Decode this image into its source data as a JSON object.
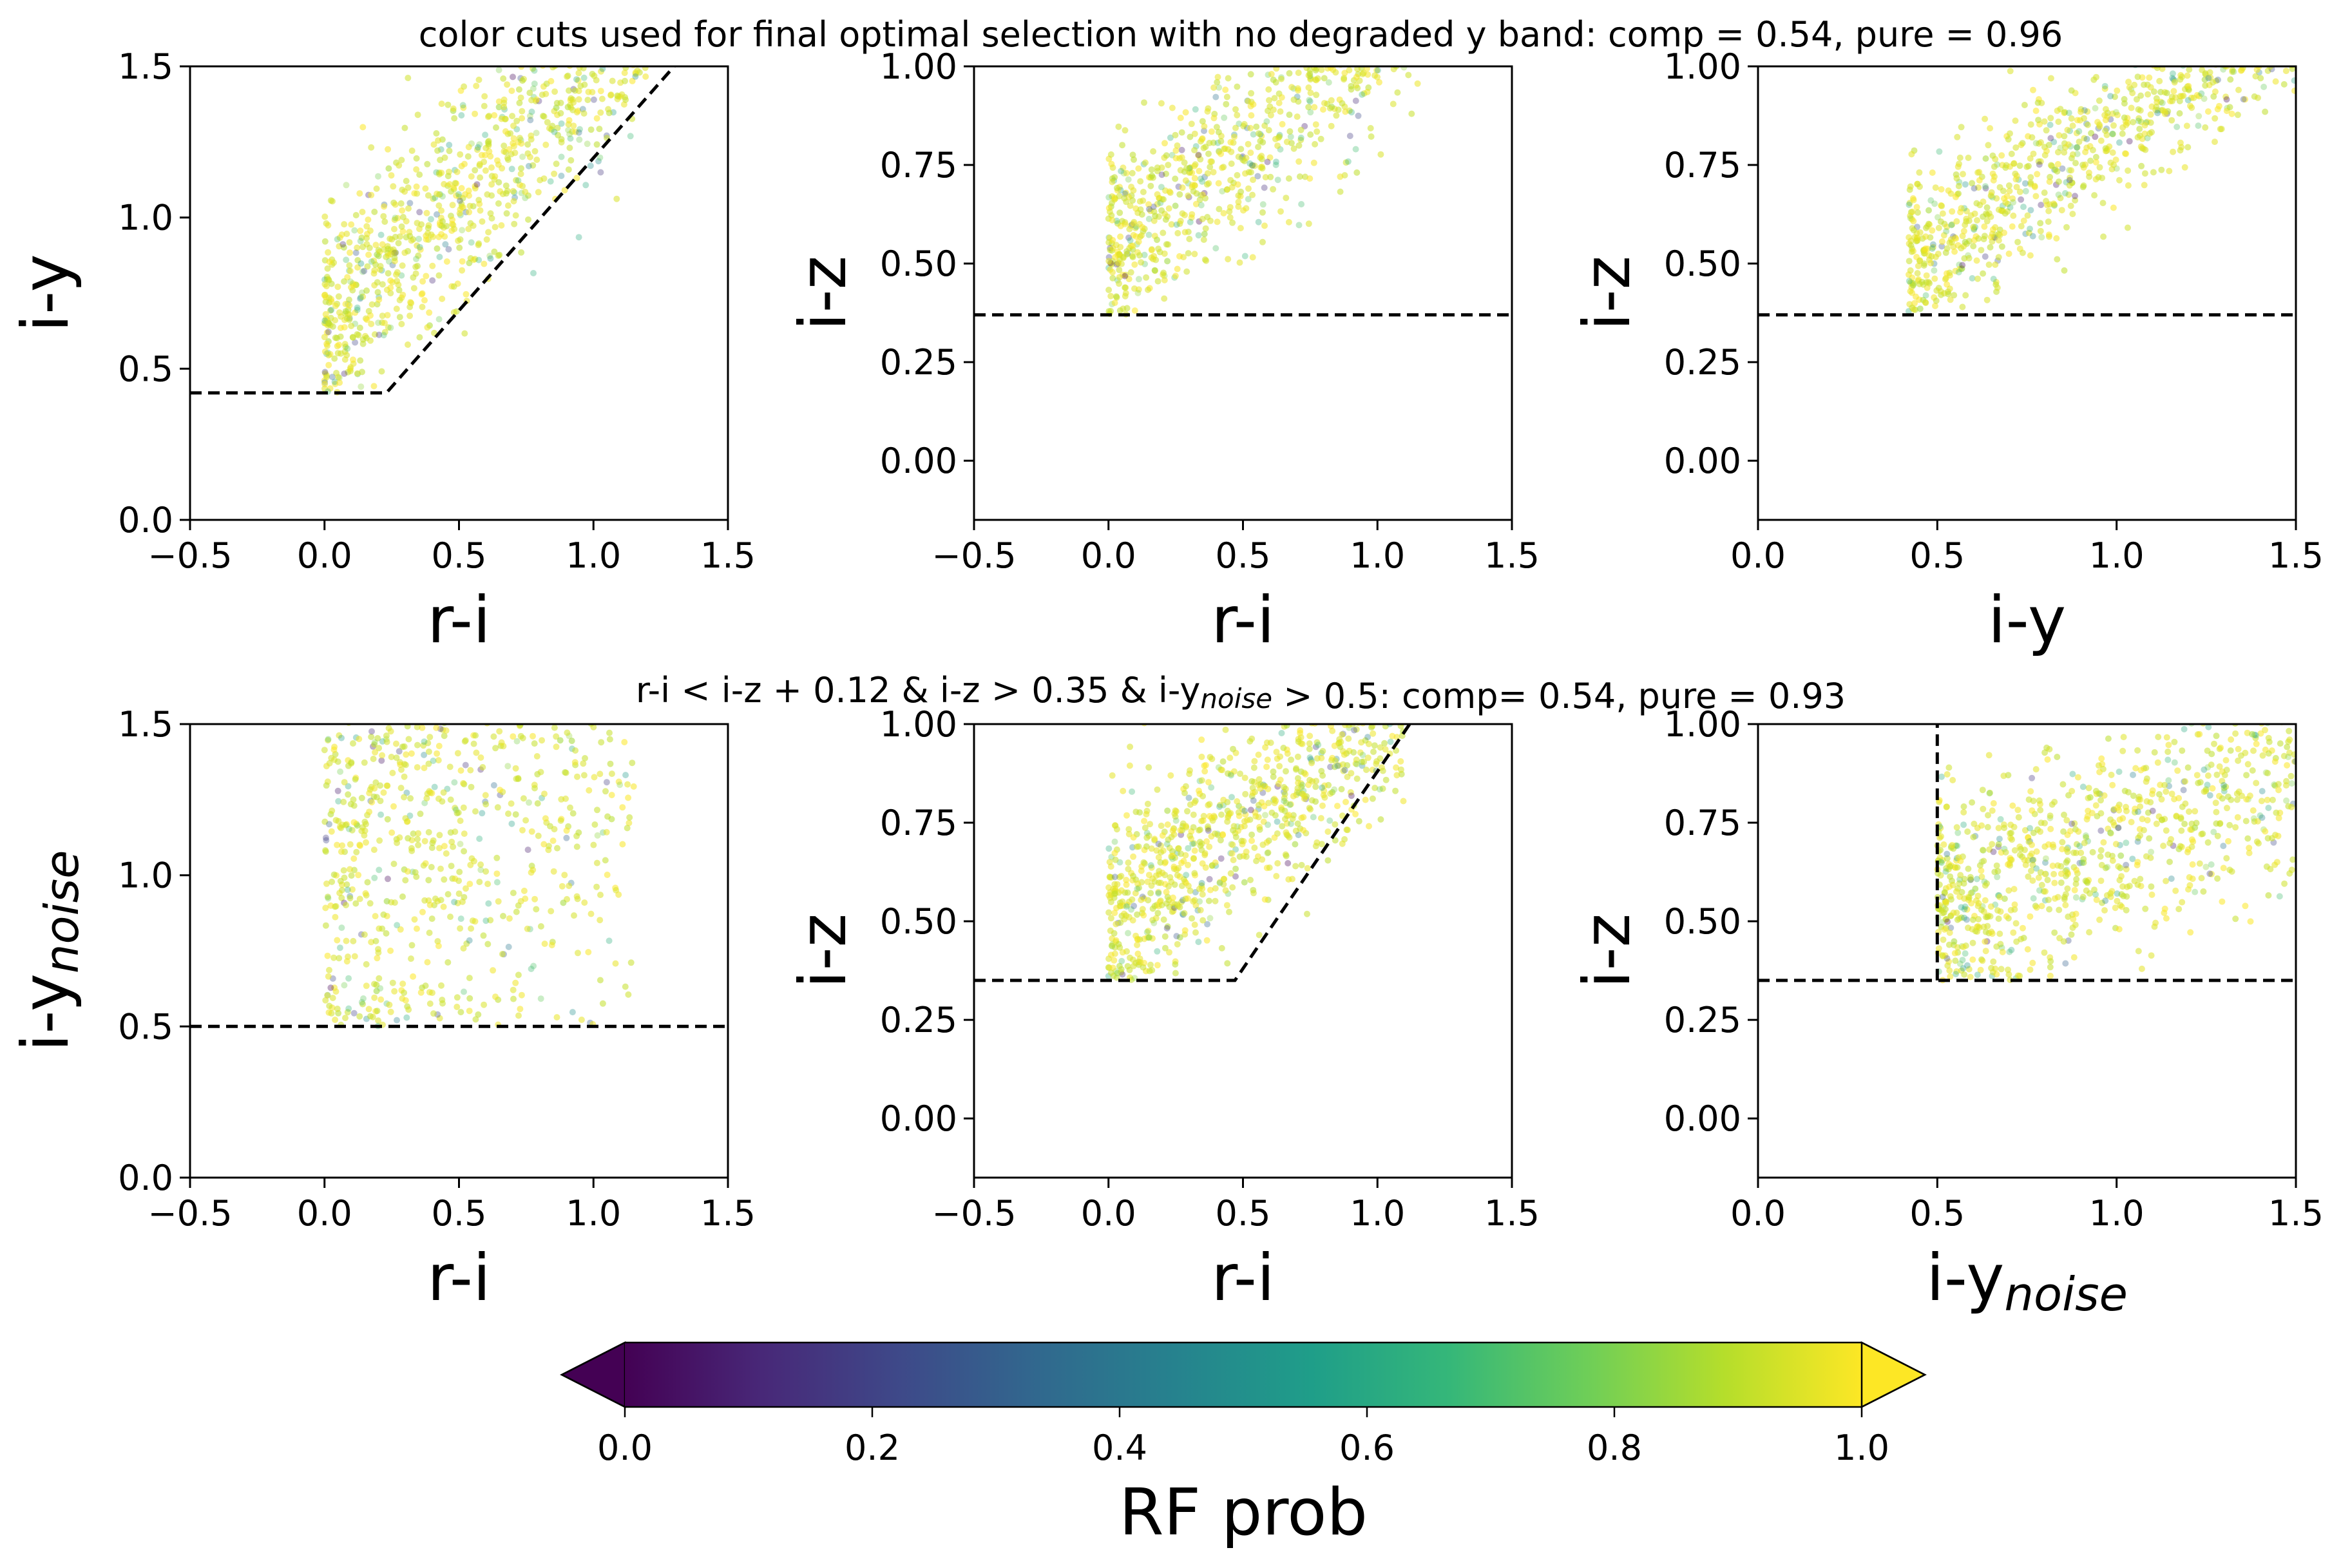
{
  "chart_data": [
    {
      "type": "scatter",
      "row_title": "color cuts used for final optimal selection with no degraded y band: comp = 0.54, pure = 0.96",
      "xlabel": "r-i",
      "ylabel": "i-y",
      "xlim": [
        -0.5,
        1.5
      ],
      "ylim": [
        0.0,
        1.5
      ],
      "xticks": [
        "−0.5",
        "0.0",
        "0.5",
        "1.0",
        "1.5"
      ],
      "xtick_values": [
        -0.5,
        0.0,
        0.5,
        1.0,
        1.5
      ],
      "yticks": [
        "0.0",
        "0.5",
        "1.0",
        "1.5"
      ],
      "ytick_values": [
        0.0,
        0.5,
        1.0,
        1.5
      ],
      "cut_line": [
        [
          -0.5,
          0.42
        ],
        [
          0.23,
          0.42
        ],
        [
          1.3,
          1.5
        ]
      ],
      "cloud": {
        "x_range": [
          0.0,
          1.2
        ],
        "y_base": 0.42,
        "slope": 0.85,
        "spread": 0.17
      }
    },
    {
      "type": "scatter",
      "xlabel": "r-i",
      "ylabel": "i-z",
      "xlim": [
        -0.5,
        1.5
      ],
      "ylim": [
        -0.15,
        1.0
      ],
      "xticks": [
        "−0.5",
        "0.0",
        "0.5",
        "1.0",
        "1.5"
      ],
      "xtick_values": [
        -0.5,
        0.0,
        0.5,
        1.0,
        1.5
      ],
      "yticks": [
        "0.00",
        "0.25",
        "0.50",
        "0.75",
        "1.00"
      ],
      "ytick_values": [
        0.0,
        0.25,
        0.5,
        0.75,
        1.0
      ],
      "cut_line": [
        [
          -0.5,
          0.37
        ],
        [
          1.5,
          0.37
        ]
      ],
      "cloud": {
        "x_range": [
          0.0,
          1.3
        ],
        "y_base": 0.37,
        "slope": 0.55,
        "spread": 0.12
      }
    },
    {
      "type": "scatter",
      "xlabel": "i-y",
      "ylabel": "i-z",
      "xlim": [
        0.0,
        1.5
      ],
      "ylim": [
        -0.15,
        1.0
      ],
      "xticks": [
        "0.0",
        "0.5",
        "1.0",
        "1.5"
      ],
      "xtick_values": [
        0.0,
        0.5,
        1.0,
        1.5
      ],
      "yticks": [
        "0.00",
        "0.25",
        "0.50",
        "0.75",
        "1.00"
      ],
      "ytick_values": [
        0.0,
        0.25,
        0.5,
        0.75,
        1.0
      ],
      "cut_line": [
        [
          0.0,
          0.37
        ],
        [
          1.5,
          0.37
        ]
      ],
      "cloud": {
        "x_range": [
          0.42,
          1.5
        ],
        "y_base": 0.37,
        "slope": 0.6,
        "spread": 0.1
      }
    },
    {
      "type": "scatter",
      "row_title": "r-i < i-z + 0.12 & i-z > 0.35 & i-y_noise > 0.5: comp= 0.54, pure = 0.93",
      "xlabel": "r-i",
      "ylabel": "i-y_noise",
      "xlim": [
        -0.5,
        1.5
      ],
      "ylim": [
        0.0,
        1.5
      ],
      "xticks": [
        "−0.5",
        "0.0",
        "0.5",
        "1.0",
        "1.5"
      ],
      "xtick_values": [
        -0.5,
        0.0,
        0.5,
        1.0,
        1.5
      ],
      "yticks": [
        "0.0",
        "0.5",
        "1.0",
        "1.5"
      ],
      "ytick_values": [
        0.0,
        0.5,
        1.0,
        1.5
      ],
      "cut_line": [
        [
          -0.5,
          0.5
        ],
        [
          1.5,
          0.5
        ]
      ],
      "cloud": {
        "x_range": [
          0.0,
          1.15
        ],
        "y_base": 0.5,
        "slope": 0.3,
        "spread": 0.45
      }
    },
    {
      "type": "scatter",
      "xlabel": "r-i",
      "ylabel": "i-z",
      "xlim": [
        -0.5,
        1.5
      ],
      "ylim": [
        -0.15,
        1.0
      ],
      "xticks": [
        "−0.5",
        "0.0",
        "0.5",
        "1.0",
        "1.5"
      ],
      "xtick_values": [
        -0.5,
        0.0,
        0.5,
        1.0,
        1.5
      ],
      "yticks": [
        "0.00",
        "0.25",
        "0.50",
        "0.75",
        "1.00"
      ],
      "ytick_values": [
        0.0,
        0.25,
        0.5,
        0.75,
        1.0
      ],
      "cut_line": [
        [
          -0.5,
          0.35
        ],
        [
          0.47,
          0.35
        ],
        [
          1.12,
          1.0
        ]
      ],
      "cloud": {
        "x_range": [
          0.0,
          1.1
        ],
        "y_base": 0.35,
        "slope": 0.5,
        "spread": 0.12
      }
    },
    {
      "type": "scatter",
      "xlabel": "i-y_noise",
      "ylabel": "i-z",
      "xlim": [
        0.0,
        1.5
      ],
      "ylim": [
        -0.15,
        1.0
      ],
      "xticks": [
        "0.0",
        "0.5",
        "1.0",
        "1.5"
      ],
      "xtick_values": [
        0.0,
        0.5,
        1.0,
        1.5
      ],
      "yticks": [
        "0.00",
        "0.25",
        "0.50",
        "0.75",
        "1.00"
      ],
      "ytick_values": [
        0.0,
        0.25,
        0.5,
        0.75,
        1.0
      ],
      "cut_line": [
        [
          0.0,
          0.35
        ],
        [
          1.5,
          0.35
        ]
      ],
      "cut_line_vertical": [
        [
          0.5,
          0.35
        ],
        [
          0.5,
          1.0
        ]
      ],
      "cloud": {
        "x_range": [
          0.5,
          1.5
        ],
        "y_base": 0.35,
        "slope": 0.35,
        "spread": 0.14
      }
    }
  ],
  "colorbar": {
    "label": "RF prob",
    "ticks": [
      "0.0",
      "0.2",
      "0.4",
      "0.6",
      "0.8",
      "1.0"
    ],
    "tick_values": [
      0.0,
      0.2,
      0.4,
      0.6,
      0.8,
      1.0
    ],
    "colormap": "viridis",
    "extend": "both"
  },
  "colors": {
    "cut_line": "#000000",
    "viridis": [
      "#440154",
      "#482878",
      "#3e4989",
      "#31688e",
      "#26828e",
      "#1f9e89",
      "#35b779",
      "#6ece58",
      "#b5de2b",
      "#fde725"
    ]
  }
}
